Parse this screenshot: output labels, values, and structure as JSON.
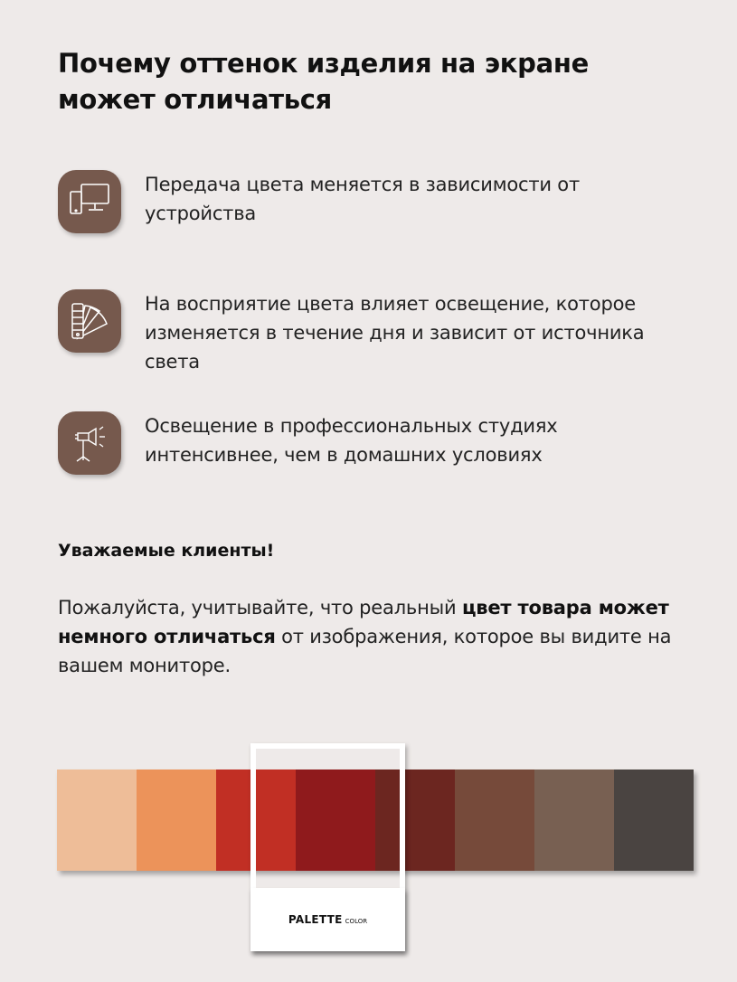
{
  "title": "Почему оттенок изделия на экране может отличаться",
  "features": [
    {
      "icon": "devices-icon",
      "text": "Передача цвета меняется в зависимости от устройства"
    },
    {
      "icon": "color-fan-icon",
      "text": "На восприятие цвета влияет освещение, которое изменяется в течение дня и зависит от источника света"
    },
    {
      "icon": "studio-light-icon",
      "text": "Освещение в профессиональных студиях интенсивнее, чем в домашних условиях"
    }
  ],
  "greeting": "Уважаемые клиенты!",
  "notice": {
    "part1": "Пожалуйста, учитывайте, что реальный ",
    "bold": "цвет товара может немного отличаться",
    "part2": " от изображения, которое вы видите на вашем мониторе."
  },
  "palette": {
    "label": "PALETTE",
    "sublabel": "COLOR",
    "swatches": [
      "#eebd98",
      "#ec935a",
      "#c12f24",
      "#8f1a1c",
      "#6c2620",
      "#764a3a",
      "#786052",
      "#4a4441"
    ]
  },
  "colors": {
    "icon_bg": "#76594d",
    "background": "#eeeae9"
  }
}
